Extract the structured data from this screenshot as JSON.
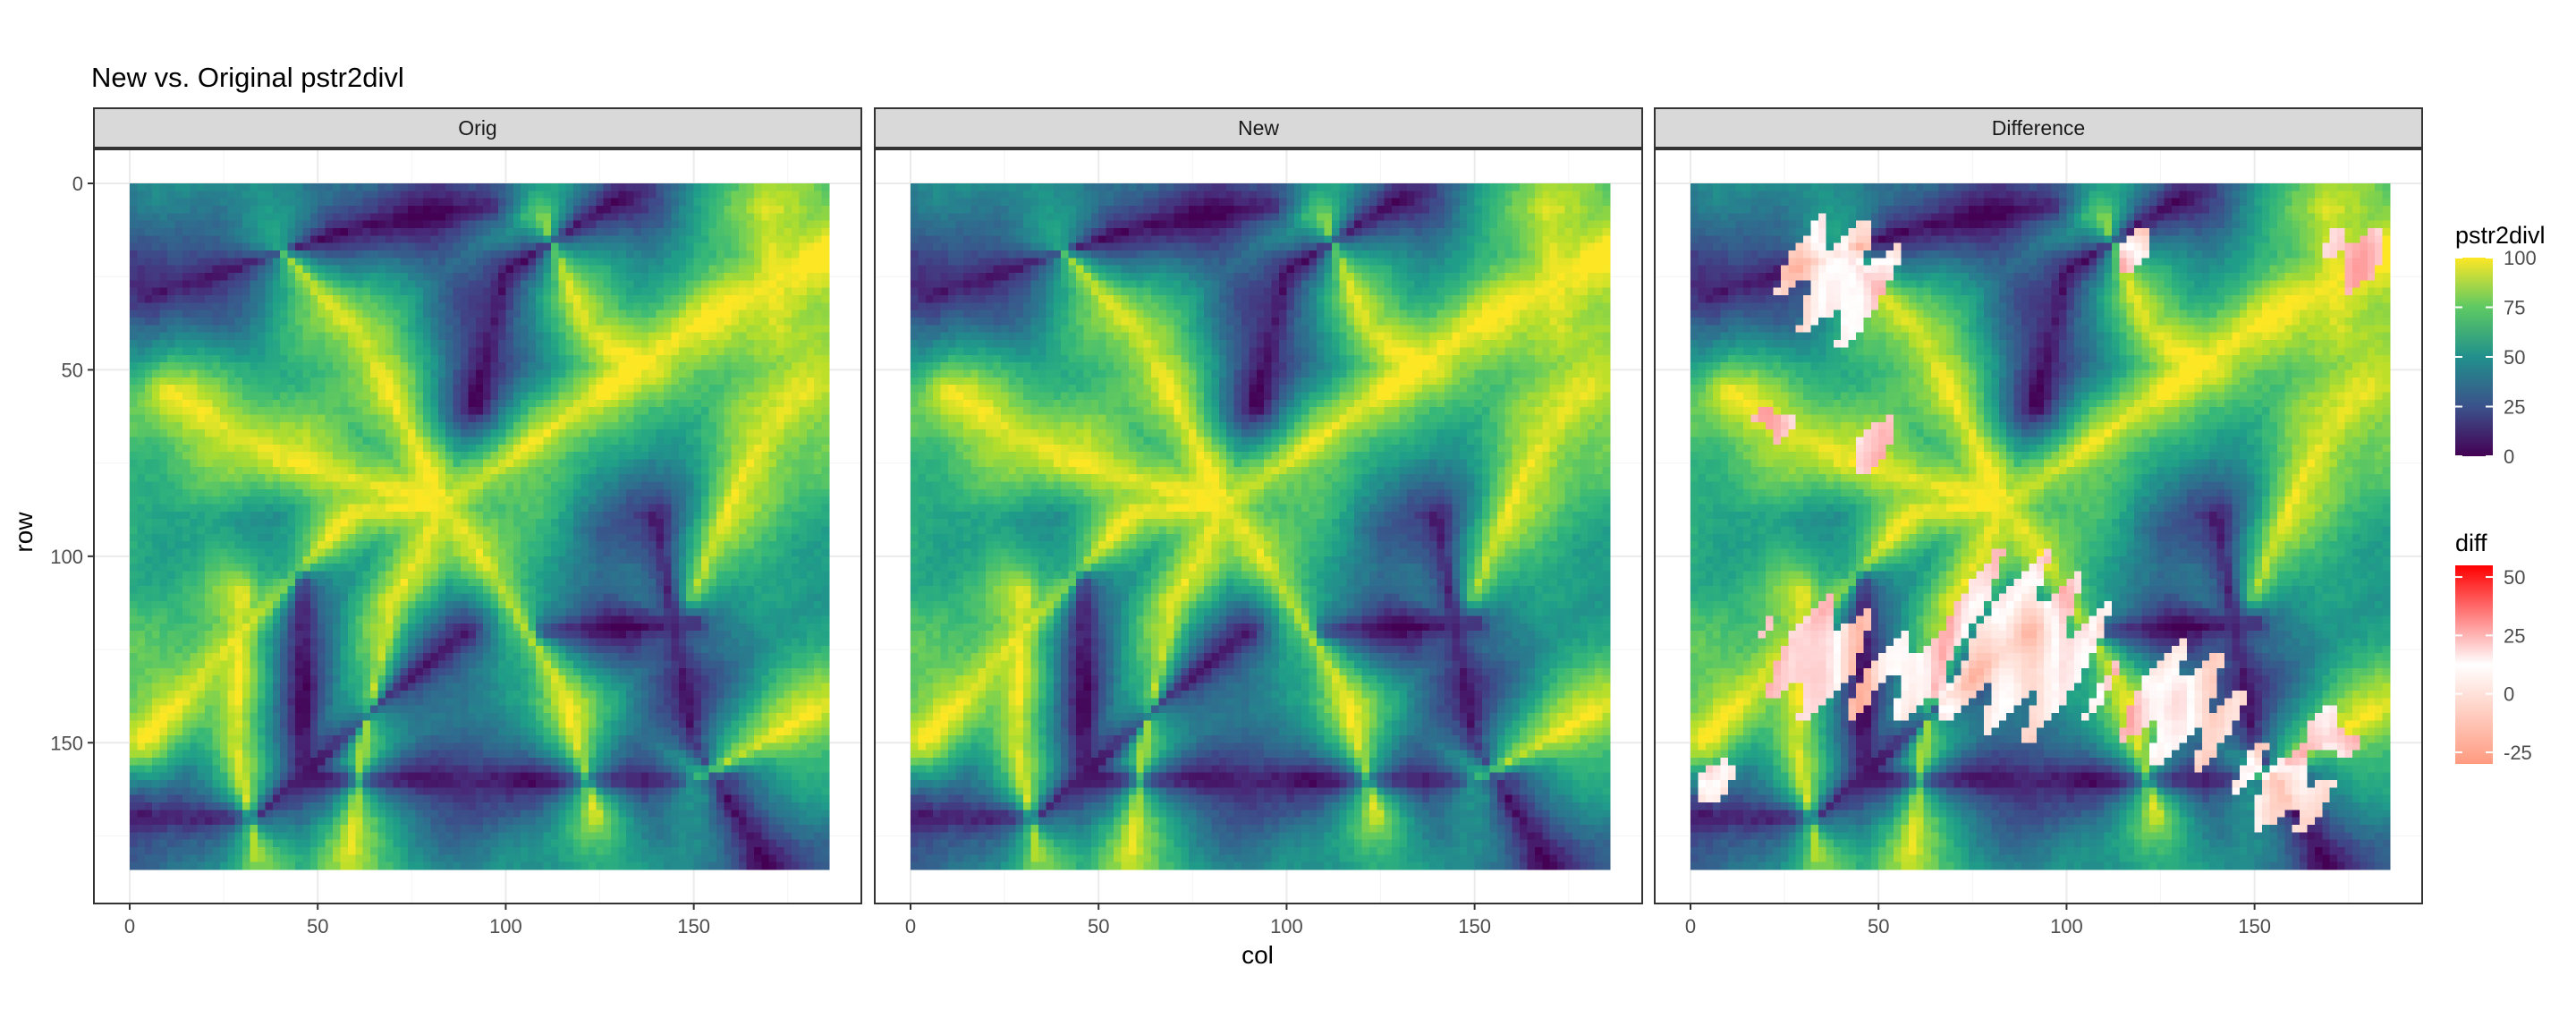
{
  "chart_data": {
    "type": "heatmap",
    "title": "New vs. Original pstr2divl",
    "xlabel": "col",
    "ylabel": "row",
    "xlim": [
      0,
      186
    ],
    "ylim": [
      0,
      184
    ],
    "x_ticks": [
      0,
      50,
      100,
      150
    ],
    "y_ticks": [
      0,
      50,
      100,
      150
    ],
    "y_reversed": true,
    "grid": true,
    "facets": [
      {
        "label": "Orig"
      },
      {
        "label": "New"
      },
      {
        "label": "Difference"
      }
    ],
    "legends": [
      {
        "title": "pstr2divl",
        "scale": "viridis",
        "range": [
          0,
          100
        ],
        "ticks": [
          0,
          25,
          50,
          75,
          100
        ],
        "colors": [
          "#440154",
          "#3b528b",
          "#21908c",
          "#5dc963",
          "#fde725"
        ]
      },
      {
        "title": "diff",
        "scale": "gradient",
        "range": [
          -30,
          55
        ],
        "ticks": [
          -25,
          0,
          25,
          50
        ],
        "colors": [
          "#ff9a80",
          "#ffffff",
          "#ff0000"
        ]
      }
    ],
    "legend_position": "right",
    "facet_strip_fill": "#d9d9d9"
  }
}
